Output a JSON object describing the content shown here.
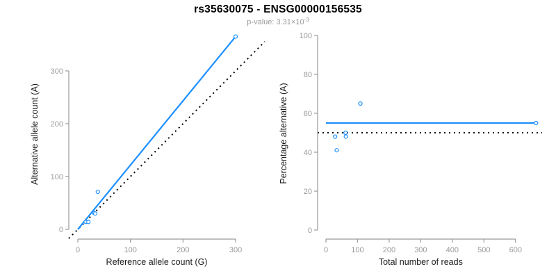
{
  "header": {
    "title": "rs35630075 - ENSG00000156535",
    "p_value_base": "p-value: 3.31×10",
    "p_value_exponent": "-3"
  },
  "colors": {
    "accent_blue": "#1E90FF",
    "axis_gray": "#9A9A9A",
    "label_black": "#1A1A1A",
    "dotted_black": "#000000",
    "point_fill": "#FFFFFF"
  },
  "chart_data": [
    {
      "type": "scatter",
      "xlabel": "Reference allele count (G)",
      "ylabel": "Alternative allele count (A)",
      "xticks": [
        0,
        100,
        200,
        300
      ],
      "yticks": [
        0,
        100,
        200,
        300
      ],
      "xlim": [
        0,
        365
      ],
      "ylim": [
        0,
        365
      ],
      "grid": false,
      "points": [
        [
          15,
          14
        ],
        [
          20,
          14
        ],
        [
          31,
          31
        ],
        [
          33,
          30
        ],
        [
          38,
          71
        ],
        [
          300,
          365
        ]
      ],
      "lines": [
        {
          "name": "identity-line",
          "style": "dotted",
          "slope": 1,
          "intercept": 0
        },
        {
          "name": "fit-line",
          "style": "solid",
          "x1": 0,
          "y1": 0,
          "x2": 300,
          "y2": 365
        }
      ]
    },
    {
      "type": "scatter",
      "xlabel": "Total number of reads",
      "ylabel": "Percentage alternative (A)",
      "xticks": [
        0,
        100,
        200,
        300,
        400,
        500,
        600
      ],
      "yticks": [
        0,
        20,
        40,
        60,
        80,
        100
      ],
      "xlim": [
        0,
        668
      ],
      "ylim": [
        0,
        100
      ],
      "grid": false,
      "points": [
        [
          29,
          48
        ],
        [
          34,
          41
        ],
        [
          62,
          50
        ],
        [
          63,
          48
        ],
        [
          109,
          65
        ],
        [
          665,
          55
        ]
      ],
      "lines": [
        {
          "name": "identity-line",
          "style": "dotted",
          "slope": 0,
          "intercept": 50
        },
        {
          "name": "fit-line",
          "style": "solid",
          "x1": 0,
          "y1": 55,
          "x2": 665,
          "y2": 55
        }
      ]
    }
  ]
}
